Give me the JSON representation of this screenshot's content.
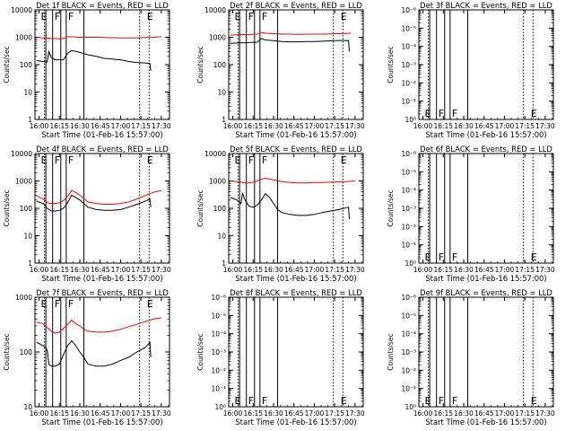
{
  "chart_data": [
    {
      "type": "line",
      "panel": 1,
      "title": "Det 1f BLACK = Events, RED = LLD",
      "xlabel": "Start Time (01-Feb-16 15:57:00)",
      "ylabel": "Counts/sec",
      "yscale": "log",
      "ylim": [
        1,
        10000
      ],
      "ytick_labels": [
        "1",
        "10",
        "100",
        "1000",
        "10000"
      ],
      "xtick_labels": [
        "16:00",
        "16:15",
        "16:30",
        "16:45",
        "17:00",
        "17:15",
        "17:30"
      ],
      "xlim": [
        15.95,
        17.6
      ],
      "vlines_solid": [
        16.0833,
        16.1667,
        16.2667,
        16.3333,
        16.55
      ],
      "vlines_dotted": [
        16.0667,
        17.2333,
        17.35
      ],
      "markers": [
        {
          "label": "E",
          "x": 16.0
        },
        {
          "label": "F",
          "x": 16.1667
        },
        {
          "label": "F",
          "x": 16.3333
        },
        {
          "label": "E",
          "x": 17.3
        }
      ],
      "series": [
        {
          "color": "#ff0000",
          "x": [
            15.97,
            16.05,
            16.1,
            16.15,
            16.2,
            16.25,
            16.3,
            16.35,
            16.4,
            16.5,
            16.6,
            16.7,
            16.8,
            16.9,
            17.0,
            17.1,
            17.2,
            17.3,
            17.4,
            17.5
          ],
          "y": [
            1000,
            950,
            950,
            900,
            900,
            880,
            900,
            1050,
            1050,
            1000,
            1000,
            1000,
            980,
            960,
            950,
            940,
            950,
            980,
            1000,
            1050
          ]
        },
        {
          "color": "#000000",
          "x": [
            15.97,
            16.05,
            16.1,
            16.12,
            16.15,
            16.2,
            16.25,
            16.3,
            16.35,
            16.4,
            16.5,
            16.6,
            16.7,
            16.8,
            16.9,
            17.0,
            17.1,
            17.2,
            17.3,
            17.36,
            17.37
          ],
          "y": [
            140,
            130,
            125,
            300,
            180,
            150,
            150,
            150,
            260,
            330,
            280,
            230,
            200,
            170,
            160,
            150,
            130,
            120,
            115,
            110,
            60
          ]
        }
      ]
    },
    {
      "type": "line",
      "panel": 2,
      "title": "Det 2f BLACK = Events, RED = LLD",
      "xlabel": "Start Time (01-Feb-16 15:57:00)",
      "ylabel": "Counts/sec",
      "yscale": "log",
      "ylim": [
        1,
        10000
      ],
      "ytick_labels": [
        "1",
        "10",
        "100",
        "1000",
        "10000"
      ],
      "xtick_labels": [
        "16:00",
        "16:15",
        "16:30",
        "16:45",
        "17:00",
        "17:15",
        "17:30"
      ],
      "xlim": [
        15.95,
        17.6
      ],
      "vlines_solid": [
        16.0833,
        16.1667,
        16.2667,
        16.3333,
        16.55
      ],
      "vlines_dotted": [
        16.0667,
        17.2333,
        17.35
      ],
      "markers": [
        {
          "label": "E",
          "x": 16.0
        },
        {
          "label": "F",
          "x": 16.1667
        },
        {
          "label": "F",
          "x": 16.3333
        },
        {
          "label": "E",
          "x": 17.3
        }
      ],
      "series": [
        {
          "color": "#ff0000",
          "x": [
            15.97,
            16.1,
            16.2,
            16.3,
            16.35,
            16.4,
            16.5,
            16.6,
            16.7,
            16.8,
            16.9,
            17.0,
            17.1,
            17.2,
            17.3,
            17.45
          ],
          "y": [
            1200,
            1250,
            1250,
            1300,
            1500,
            1400,
            1350,
            1300,
            1300,
            1280,
            1300,
            1300,
            1300,
            1320,
            1350,
            1400
          ]
        },
        {
          "color": "#000000",
          "x": [
            15.97,
            16.1,
            16.2,
            16.3,
            16.35,
            16.4,
            16.5,
            16.6,
            16.7,
            16.8,
            16.9,
            17.0,
            17.1,
            17.2,
            17.3,
            17.42,
            17.43
          ],
          "y": [
            600,
            620,
            640,
            660,
            900,
            800,
            750,
            700,
            680,
            680,
            700,
            700,
            720,
            740,
            760,
            760,
            300
          ]
        }
      ]
    },
    {
      "type": "line",
      "panel": 3,
      "title": "Det 3f BLACK = Events, RED = LLD",
      "xlabel": "Start Time (01-Feb-16 15:57:00)",
      "ylabel": "Counts/sec",
      "yscale": "log",
      "ylim": [
        1,
        1e-06
      ],
      "ytick_labels": [
        "10⁰",
        "10⁻¹",
        "10⁻²",
        "10⁻³",
        "10⁻⁴",
        "10⁻⁵",
        "10⁻⁶"
      ],
      "xtick_labels": [
        "16:00",
        "16:15",
        "16:30",
        "16:45",
        "17:00",
        "17:15",
        "17:30"
      ],
      "xlim": [
        15.95,
        17.6
      ],
      "vlines_solid": [
        16.0833,
        16.1667,
        16.2667,
        16.3333,
        16.55
      ],
      "vlines_dotted": [
        16.0667,
        17.2333,
        17.35
      ],
      "markers": [
        {
          "label": "E",
          "x": 16.0
        },
        {
          "label": "F",
          "x": 16.1667
        },
        {
          "label": "F",
          "x": 16.3333
        },
        {
          "label": "E",
          "x": 17.3
        }
      ],
      "series": []
    },
    {
      "type": "line",
      "panel": 4,
      "title": "Det 4f BLACK = Events, RED = LLD",
      "xlabel": "Start Time (01-Feb-16 15:57:00)",
      "ylabel": "Counts/sec",
      "yscale": "log",
      "ylim": [
        1,
        10000
      ],
      "ytick_labels": [
        "1",
        "10",
        "100",
        "1000",
        "10000"
      ],
      "xtick_labels": [
        "16:00",
        "16:15",
        "16:30",
        "16:45",
        "17:00",
        "17:15",
        "17:30"
      ],
      "xlim": [
        15.95,
        17.6
      ],
      "vlines_solid": [
        16.0833,
        16.1667,
        16.2667,
        16.3333,
        16.55
      ],
      "vlines_dotted": [
        16.0667,
        17.2333,
        17.35
      ],
      "markers": [
        {
          "label": "E",
          "x": 16.0
        },
        {
          "label": "F",
          "x": 16.1667
        },
        {
          "label": "F",
          "x": 16.3333
        },
        {
          "label": "E",
          "x": 17.3
        }
      ],
      "series": [
        {
          "color": "#ff0000",
          "x": [
            15.97,
            16.05,
            16.1,
            16.15,
            16.2,
            16.25,
            16.3,
            16.35,
            16.4,
            16.45,
            16.5,
            16.55,
            16.6,
            16.7,
            16.8,
            16.9,
            17.0,
            17.1,
            17.2,
            17.3,
            17.4,
            17.5
          ],
          "y": [
            280,
            220,
            160,
            150,
            150,
            160,
            190,
            270,
            450,
            380,
            300,
            230,
            170,
            150,
            140,
            140,
            150,
            170,
            220,
            290,
            380,
            450
          ]
        },
        {
          "color": "#000000",
          "x": [
            15.97,
            16.05,
            16.1,
            16.15,
            16.2,
            16.25,
            16.3,
            16.35,
            16.4,
            16.45,
            16.5,
            16.55,
            16.6,
            16.7,
            16.8,
            16.9,
            17.0,
            17.1,
            17.2,
            17.3,
            17.36,
            17.37
          ],
          "y": [
            180,
            150,
            100,
            80,
            80,
            85,
            100,
            160,
            300,
            250,
            200,
            150,
            110,
            90,
            85,
            85,
            90,
            110,
            140,
            180,
            220,
            110
          ]
        }
      ]
    },
    {
      "type": "line",
      "panel": 5,
      "title": "Det 5f BLACK = Events, RED = LLD",
      "xlabel": "Start Time (01-Feb-16 15:57:00)",
      "ylabel": "Counts/sec",
      "yscale": "log",
      "ylim": [
        1,
        10000
      ],
      "ytick_labels": [
        "1",
        "10",
        "100",
        "1000",
        "10000"
      ],
      "xtick_labels": [
        "16:00",
        "16:15",
        "16:30",
        "16:45",
        "17:00",
        "17:15",
        "17:30"
      ],
      "xlim": [
        15.95,
        17.6
      ],
      "vlines_solid": [
        16.0833,
        16.1667,
        16.2667,
        16.3333,
        16.55
      ],
      "vlines_dotted": [
        16.0667,
        17.2333,
        17.35
      ],
      "markers": [
        {
          "label": "E",
          "x": 16.0
        },
        {
          "label": "F",
          "x": 16.1667
        },
        {
          "label": "F",
          "x": 16.3333
        },
        {
          "label": "E",
          "x": 17.3
        }
      ],
      "series": [
        {
          "color": "#ff0000",
          "x": [
            15.97,
            16.05,
            16.1,
            16.15,
            16.2,
            16.25,
            16.3,
            16.35,
            16.4,
            16.5,
            16.6,
            16.7,
            16.8,
            16.9,
            17.0,
            17.1,
            17.2,
            17.3,
            17.4,
            17.5
          ],
          "y": [
            1000,
            950,
            900,
            850,
            850,
            900,
            1000,
            1150,
            1250,
            1100,
            950,
            880,
            850,
            850,
            870,
            880,
            900,
            930,
            950,
            1000
          ]
        },
        {
          "color": "#000000",
          "x": [
            15.97,
            16.05,
            16.1,
            16.12,
            16.15,
            16.2,
            16.25,
            16.3,
            16.35,
            16.4,
            16.45,
            16.5,
            16.55,
            16.6,
            16.7,
            16.8,
            16.9,
            17.0,
            17.1,
            17.2,
            17.3,
            17.42,
            17.43
          ],
          "y": [
            250,
            200,
            150,
            350,
            200,
            120,
            110,
            130,
            200,
            340,
            250,
            150,
            90,
            70,
            60,
            55,
            55,
            60,
            70,
            80,
            90,
            110,
            40
          ]
        }
      ]
    },
    {
      "type": "line",
      "panel": 6,
      "title": "Det 6f BLACK = Events, RED = LLD",
      "xlabel": "Start Time (01-Feb-16 15:57:00)",
      "ylabel": "Counts/sec",
      "yscale": "log",
      "ylim": [
        1,
        1e-06
      ],
      "ytick_labels": [
        "10⁰",
        "10⁻¹",
        "10⁻²",
        "10⁻³",
        "10⁻⁴",
        "10⁻⁵",
        "10⁻⁶"
      ],
      "xtick_labels": [
        "16:00",
        "16:15",
        "16:30",
        "16:45",
        "17:00",
        "17:15",
        "17:30"
      ],
      "xlim": [
        15.95,
        17.6
      ],
      "vlines_solid": [
        16.0833,
        16.1667,
        16.2667,
        16.3333,
        16.55
      ],
      "vlines_dotted": [
        16.0667,
        17.2333,
        17.35
      ],
      "markers": [
        {
          "label": "E",
          "x": 16.0
        },
        {
          "label": "F",
          "x": 16.1667
        },
        {
          "label": "F",
          "x": 16.3333
        },
        {
          "label": "E",
          "x": 17.3
        }
      ],
      "series": []
    },
    {
      "type": "line",
      "panel": 7,
      "title": "Det 7f BLACK = Events, RED = LLD",
      "xlabel": "Start Time (01-Feb-16 15:57:00)",
      "ylabel": "Counts/sec",
      "yscale": "log",
      "ylim": [
        10,
        1000
      ],
      "ytick_labels": [
        "10",
        "100",
        "1000"
      ],
      "xtick_labels": [
        "16:00",
        "16:15",
        "16:30",
        "16:45",
        "17:00",
        "17:15",
        "17:30"
      ],
      "xlim": [
        15.95,
        17.6
      ],
      "vlines_solid": [
        16.0833,
        16.1667,
        16.2667,
        16.3333,
        16.55
      ],
      "vlines_dotted": [
        16.0667,
        17.2333,
        17.35
      ],
      "markers": [
        {
          "label": "E",
          "x": 16.0
        },
        {
          "label": "F",
          "x": 16.1667
        },
        {
          "label": "F",
          "x": 16.3333
        },
        {
          "label": "E",
          "x": 17.3
        }
      ],
      "series": [
        {
          "color": "#ff0000",
          "x": [
            15.97,
            16.05,
            16.1,
            16.15,
            16.2,
            16.25,
            16.3,
            16.35,
            16.4,
            16.45,
            16.5,
            16.55,
            16.6,
            16.7,
            16.8,
            16.9,
            17.0,
            17.1,
            17.2,
            17.3,
            17.4,
            17.5
          ],
          "y": [
            350,
            330,
            280,
            240,
            220,
            230,
            270,
            320,
            380,
            330,
            300,
            260,
            240,
            230,
            230,
            240,
            260,
            290,
            320,
            360,
            400,
            420
          ]
        },
        {
          "color": "#000000",
          "x": [
            15.97,
            16.05,
            16.1,
            16.12,
            16.15,
            16.2,
            16.25,
            16.3,
            16.35,
            16.4,
            16.45,
            16.5,
            16.55,
            16.6,
            16.7,
            16.8,
            16.9,
            17.0,
            17.1,
            17.2,
            17.3,
            17.36,
            17.37
          ],
          "y": [
            150,
            130,
            110,
            60,
            55,
            55,
            60,
            90,
            130,
            160,
            130,
            100,
            80,
            60,
            55,
            55,
            60,
            70,
            80,
            100,
            120,
            150,
            80
          ]
        }
      ]
    },
    {
      "type": "line",
      "panel": 8,
      "title": "Det 8f BLACK = Events, RED = LLD",
      "xlabel": "Start Time (01-Feb-16 15:57:00)",
      "ylabel": "Counts/sec",
      "yscale": "log",
      "ylim": [
        1,
        1e-06
      ],
      "ytick_labels": [
        "10⁰",
        "10⁻¹",
        "10⁻²",
        "10⁻³",
        "10⁻⁴",
        "10⁻⁵",
        "10⁻⁶"
      ],
      "xtick_labels": [
        "16:00",
        "16:15",
        "16:30",
        "16:45",
        "17:00",
        "17:15",
        "17:30"
      ],
      "xlim": [
        15.95,
        17.6
      ],
      "vlines_solid": [
        16.0833,
        16.1667,
        16.2667,
        16.3333,
        16.55
      ],
      "vlines_dotted": [
        16.0667,
        17.2333,
        17.35
      ],
      "markers": [
        {
          "label": "E",
          "x": 16.0
        },
        {
          "label": "F",
          "x": 16.1667
        },
        {
          "label": "F",
          "x": 16.3333
        },
        {
          "label": "E",
          "x": 17.3
        }
      ],
      "series": []
    },
    {
      "type": "line",
      "panel": 9,
      "title": "Det 9f BLACK = Events, RED = LLD",
      "xlabel": "Start Time (01-Feb-16 15:57:00)",
      "ylabel": "Counts/sec",
      "yscale": "log",
      "ylim": [
        1,
        1e-06
      ],
      "ytick_labels": [
        "10⁰",
        "10⁻¹",
        "10⁻²",
        "10⁻³",
        "10⁻⁴",
        "10⁻⁵",
        "10⁻⁶"
      ],
      "xtick_labels": [
        "16:00",
        "16:15",
        "16:30",
        "16:45",
        "17:00",
        "17:15",
        "17:30"
      ],
      "xlim": [
        15.95,
        17.6
      ],
      "vlines_solid": [
        16.0833,
        16.1667,
        16.2667,
        16.3333,
        16.55
      ],
      "vlines_dotted": [
        16.0667,
        17.2333,
        17.35
      ],
      "markers": [
        {
          "label": "E",
          "x": 16.0
        },
        {
          "label": "F",
          "x": 16.1667
        },
        {
          "label": "F",
          "x": 16.3333
        },
        {
          "label": "E",
          "x": 17.3
        }
      ],
      "series": []
    }
  ]
}
